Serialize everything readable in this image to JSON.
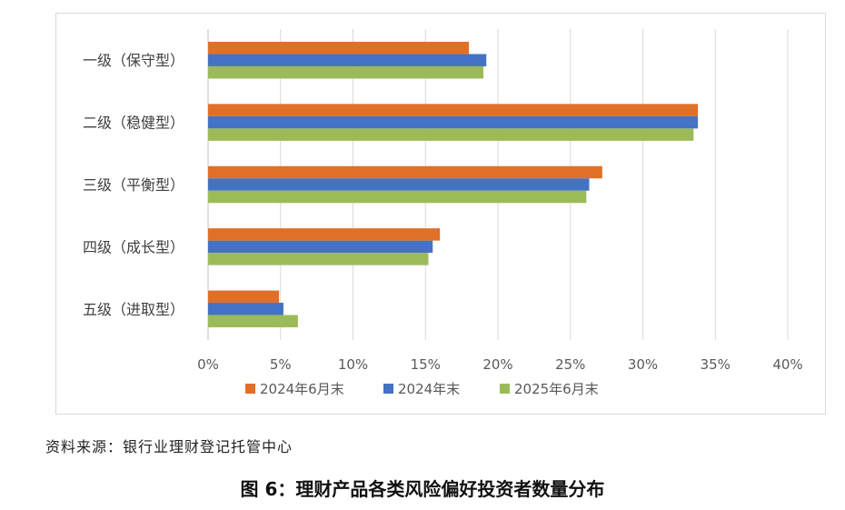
{
  "chart_data": {
    "type": "bar",
    "orientation": "horizontal",
    "categories": [
      "一级（保守型）",
      "二级（稳健型）",
      "三级（平衡型）",
      "四级（成长型）",
      "五级（进取型）"
    ],
    "series": [
      {
        "name": "2024年6月末",
        "color": "#E07028",
        "values": [
          18.0,
          33.8,
          27.2,
          16.0,
          4.9
        ]
      },
      {
        "name": "2024年末",
        "color": "#4472C4",
        "values": [
          19.2,
          33.8,
          26.3,
          15.5,
          5.2
        ]
      },
      {
        "name": "2025年6月末",
        "color": "#9BBB59",
        "values": [
          19.0,
          33.5,
          26.1,
          15.2,
          6.2
        ]
      }
    ],
    "xlim": [
      0,
      40
    ],
    "xticks": [
      "0%",
      "5%",
      "10%",
      "15%",
      "20%",
      "25%",
      "30%",
      "35%",
      "40%"
    ],
    "grid": true,
    "legend_position": "bottom"
  },
  "source_text": "资料来源：银行业理财登记托管中心",
  "caption": "图 6：理财产品各类风险偏好投资者数量分布"
}
